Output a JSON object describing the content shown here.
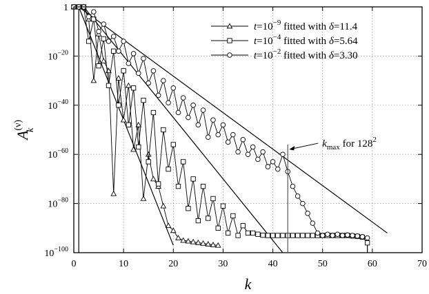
{
  "chart_data": {
    "type": "line",
    "xlabel": "k",
    "ylabel": "A_k^(ν)",
    "ylabel_parts": {
      "base": "A",
      "sub": "k",
      "sup": "(ν)"
    },
    "xlim": [
      0,
      70
    ],
    "ylim_log10": [
      -100,
      0
    ],
    "yscale": "log",
    "grid": "dotted",
    "legend_position": "top-right",
    "x_ticks": [
      {
        "value": 0,
        "label": "0"
      },
      {
        "value": 10,
        "label": "10"
      },
      {
        "value": 20,
        "label": "20"
      },
      {
        "value": 30,
        "label": "30"
      },
      {
        "value": 40,
        "label": "40"
      },
      {
        "value": 50,
        "label": "50"
      },
      {
        "value": 60,
        "label": "60"
      },
      {
        "value": 70,
        "label": "70"
      }
    ],
    "y_ticks": [
      {
        "value": 0,
        "label": "1",
        "exp": ""
      },
      {
        "value": -20,
        "label": "10",
        "exp": "−20"
      },
      {
        "value": -40,
        "label": "10",
        "exp": "−40"
      },
      {
        "value": -60,
        "label": "10",
        "exp": "−60"
      },
      {
        "value": -80,
        "label": "10",
        "exp": "−80"
      },
      {
        "value": -100,
        "label": "10",
        "exp": "−100"
      }
    ],
    "series": [
      {
        "name": "t=10^-9 fitted with δ=11.4",
        "legend": {
          "pre": "t",
          "mid": "=10",
          "exp": "−9",
          "post": " fitted with ",
          "delta": "δ",
          "value": "=11.4"
        },
        "marker": "triangle",
        "x": [
          0,
          1,
          2,
          3,
          4,
          5,
          6,
          7,
          8,
          9,
          10,
          11,
          12,
          13,
          14,
          15,
          16,
          17,
          18,
          19,
          20,
          21,
          22,
          23,
          24,
          25,
          26,
          27,
          28,
          29
        ],
        "log10_y": [
          0,
          0,
          0,
          -5,
          -30,
          -11,
          -22,
          -26,
          -76,
          -29,
          -46,
          -32,
          -58,
          -48,
          -78,
          -60,
          -70,
          -73,
          -81,
          -89,
          -91,
          -94,
          -95,
          -95.3,
          -95.6,
          -95.9,
          -96.2,
          -96.5,
          -96.8,
          -97
        ],
        "fit_log10_y": [
          [
            1,
            0
          ],
          [
            20,
            -97
          ]
        ],
        "drop": {
          "x": 1,
          "from_log10_y": 0
        }
      },
      {
        "name": "t=10^-4 fitted with δ=5.64",
        "legend": {
          "pre": "t",
          "mid": "=10",
          "exp": "−4",
          "post": " fitted with ",
          "delta": "δ",
          "value": "=5.64"
        },
        "marker": "square",
        "x": [
          0,
          1,
          2,
          3,
          4,
          5,
          6,
          7,
          8,
          9,
          10,
          11,
          12,
          13,
          14,
          15,
          16,
          17,
          18,
          19,
          20,
          21,
          22,
          23,
          24,
          25,
          26,
          27,
          28,
          29,
          30,
          31,
          32,
          33,
          34,
          35,
          36,
          37,
          38,
          39,
          40,
          41,
          42,
          43,
          44,
          45,
          46,
          47,
          48,
          49,
          50,
          51,
          52,
          53,
          54,
          55,
          56,
          57,
          58,
          59
        ],
        "log10_y": [
          0,
          0,
          0,
          -14,
          -5,
          -24,
          -13,
          -32,
          -18,
          -40,
          -26,
          -48,
          -33,
          -57,
          -38,
          -63,
          -43,
          -72,
          -50,
          -66,
          -56,
          -73,
          -63,
          -82,
          -70,
          -87,
          -73,
          -86,
          -78,
          -90,
          -81,
          -92,
          -85,
          -93,
          -89,
          -92,
          -92,
          -92.5,
          -92.9,
          -93,
          -93,
          -93,
          -93,
          -93,
          -93,
          -93,
          -93,
          -93,
          -93,
          -93,
          -93,
          -93,
          -93,
          -93,
          -93,
          -93,
          -93.2,
          -93.4,
          -93.7,
          -96
        ],
        "fit_log10_y": [
          [
            2,
            0
          ],
          [
            42,
            -100
          ]
        ],
        "drop": {
          "x": 59,
          "from_log10_y": -96
        }
      },
      {
        "name": "t=10^-2 fitted with δ=3.30",
        "legend": {
          "pre": "t",
          "mid": "=10",
          "exp": "−2",
          "post": " fitted with ",
          "delta": "δ",
          "value": "=3.30"
        },
        "marker": "circle",
        "x": [
          0,
          1,
          2,
          3,
          4,
          5,
          6,
          7,
          8,
          9,
          10,
          11,
          12,
          13,
          14,
          15,
          16,
          17,
          18,
          19,
          20,
          21,
          22,
          23,
          24,
          25,
          26,
          27,
          28,
          29,
          30,
          31,
          32,
          33,
          34,
          35,
          36,
          37,
          38,
          39,
          40,
          41,
          42,
          43,
          44,
          45,
          46,
          47,
          48,
          49,
          50,
          51,
          52,
          53,
          54,
          55,
          56,
          57,
          58,
          59
        ],
        "log10_y": [
          0,
          0,
          0,
          -4,
          -2,
          -10,
          -7,
          -14,
          -12,
          -18,
          -14,
          -23,
          -19,
          -27,
          -21,
          -31,
          -26,
          -36,
          -30,
          -39,
          -33,
          -43,
          -37,
          -45,
          -40,
          -48,
          -42,
          -53,
          -46,
          -52,
          -48,
          -55,
          -52,
          -59,
          -54,
          -60,
          -57,
          -62,
          -59,
          -65,
          -63,
          -66,
          -60,
          -67,
          -73,
          -77,
          -80,
          -84,
          -88,
          -92,
          -93,
          -92.5,
          -93,
          -92.5,
          -93,
          -92.8,
          -93,
          -93.2,
          -93.5,
          -94
        ],
        "fit_log10_y": [
          [
            1,
            0
          ],
          [
            63,
            -92
          ]
        ],
        "drop": null
      }
    ],
    "annotation": {
      "text_base": "k",
      "text_sub": "max",
      "text_rest": " for 128",
      "text_sup": "2",
      "arrow_tip_x": 43,
      "arrow_tip_log10_y": -58,
      "vline_x": 43,
      "vline_from_log10_y": -56
    }
  }
}
